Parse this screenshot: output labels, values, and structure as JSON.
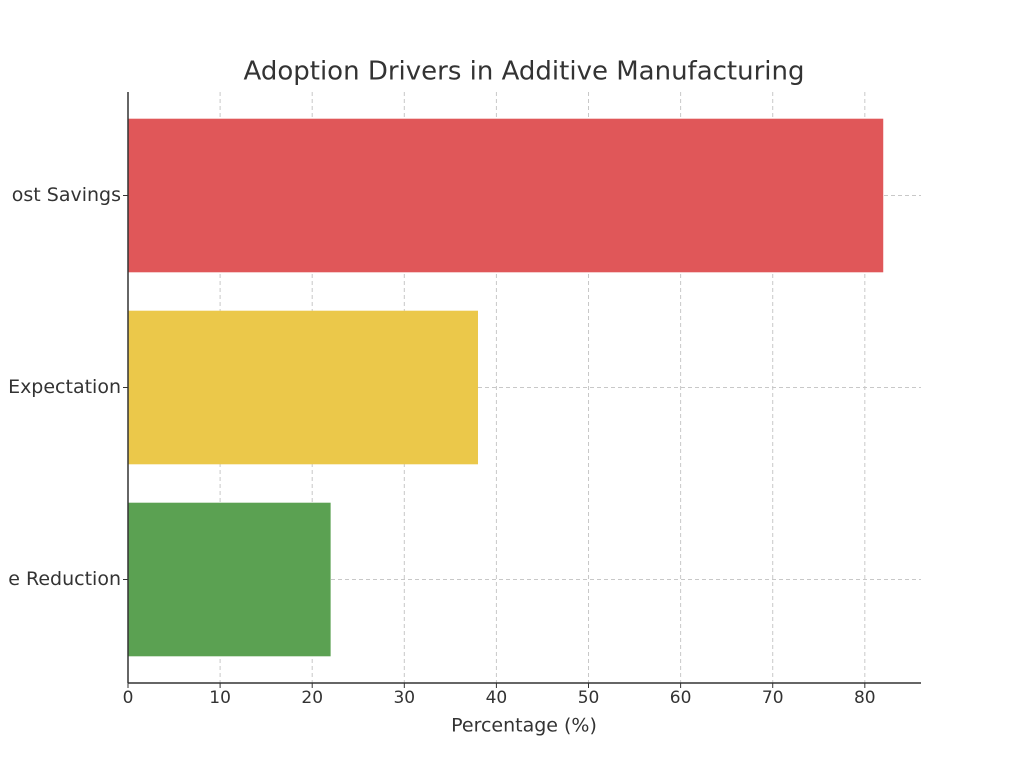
{
  "chart_data": {
    "type": "barh",
    "title": "Adoption Drivers in Additive Manufacturing",
    "xlabel": "Percentage (%)",
    "categories": [
      "ost Savings",
      "Expectation",
      "e Reduction"
    ],
    "values": [
      82,
      38,
      22
    ],
    "colors": [
      "#e05759",
      "#ebc84a",
      "#5ba152"
    ],
    "xlim": [
      0,
      86.1
    ],
    "xticks": [
      0,
      10,
      20,
      30,
      40,
      50,
      60,
      70,
      80
    ],
    "grid": true
  }
}
